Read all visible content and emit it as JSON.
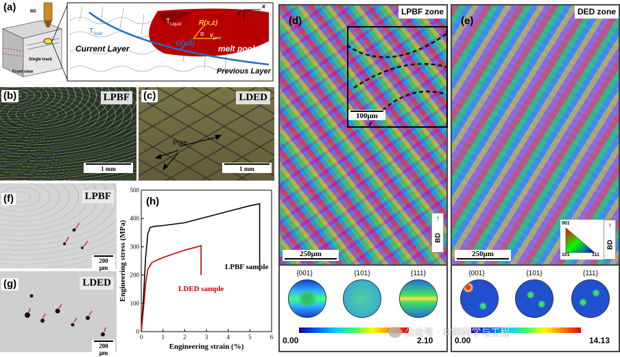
{
  "panel_a": {
    "label": "(a)",
    "bd": "BD",
    "single_track": "Single track",
    "front_view": "Front view",
    "t_liquid": "T",
    "t_liquid_sub": "Liquid",
    "t_solid": "T",
    "t_solid_sub": "Solid",
    "r": "R(x,z)",
    "alpha": "α",
    "g": "G(x,z)",
    "v": "v",
    "v_sub": "proc",
    "z": "z",
    "x": "x",
    "current_layer": "Current Layer",
    "melt_pool": "melt pool",
    "previous_layer": "Previous Layer"
  },
  "panel_b": {
    "label": "(b)",
    "tag": "LPBF",
    "scale": "1 mm"
  },
  "panel_c": {
    "label": "(c)",
    "tag": "LDED",
    "pore": "Pore",
    "scale": "1 mm"
  },
  "panel_d": {
    "label": "(d)",
    "tag": "LPBF zone",
    "inset_scale": "100μm",
    "scale": "250μm",
    "bd": "BD",
    "pf": [
      "{001}",
      "{101}",
      "{111}"
    ],
    "cbar_min": "0.00",
    "cbar_max": "2.10"
  },
  "panel_e": {
    "label": "(e)",
    "tag": "DED zone",
    "scale": "250μm",
    "bd": "BD",
    "ipf": [
      "001",
      "101",
      "111"
    ],
    "pf": [
      "{001}",
      "{101}",
      "{111}"
    ],
    "cbar_min": "0.00",
    "cbar_max": "14.13"
  },
  "panel_f": {
    "label": "(f)",
    "tag": "LPBF",
    "scale": "200 μm"
  },
  "panel_g": {
    "label": "(g)",
    "tag": "LDED",
    "scale": "200 μm"
  },
  "panel_h": {
    "label": "(h)",
    "lpbf_sample": "LPBF sample",
    "lded_sample": "LDED sample"
  },
  "watermark": "公众号 · 材料科学与工程",
  "chart_data": {
    "type": "line",
    "xlabel": "Engineering strain (%)",
    "ylabel": "Engineering stress (MPa)",
    "xlim": [
      0,
      6
    ],
    "ylim": [
      0,
      500
    ],
    "xticks": [
      0,
      1,
      2,
      3,
      4,
      5,
      6
    ],
    "yticks": [
      0,
      100,
      200,
      300,
      400,
      500
    ],
    "series": [
      {
        "name": "LPBF sample",
        "color": "#000000",
        "x": [
          0,
          0.1,
          0.2,
          0.3,
          0.4,
          0.6,
          1.0,
          2.0,
          3.0,
          4.0,
          5.0,
          5.45,
          5.45
        ],
        "y": [
          0,
          120,
          260,
          345,
          368,
          372,
          375,
          385,
          405,
          425,
          445,
          452,
          215
        ]
      },
      {
        "name": "LDED sample",
        "color": "#c00000",
        "x": [
          0,
          0.1,
          0.2,
          0.3,
          0.5,
          0.8,
          1.0,
          1.5,
          2.0,
          2.5,
          2.75,
          2.75
        ],
        "y": [
          0,
          80,
          170,
          220,
          245,
          255,
          262,
          275,
          288,
          298,
          304,
          200
        ]
      }
    ]
  }
}
